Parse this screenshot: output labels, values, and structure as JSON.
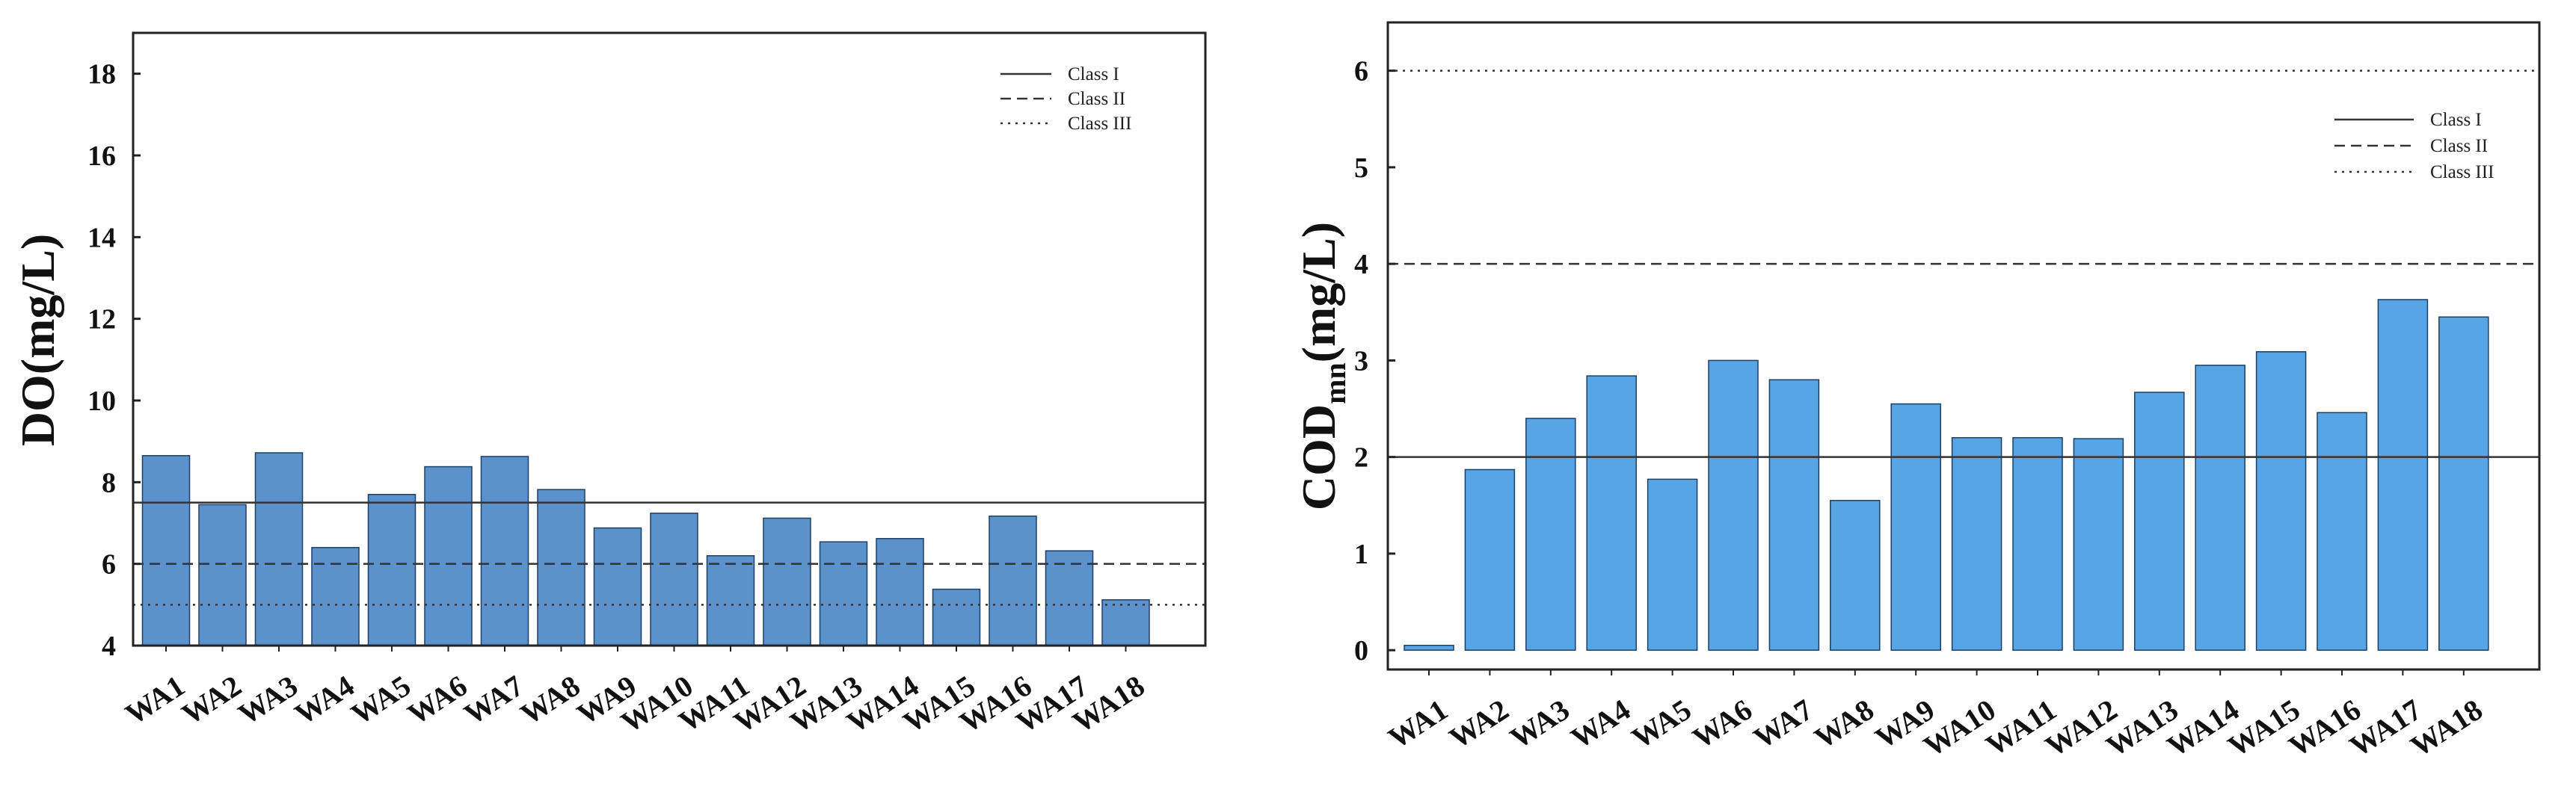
{
  "chart_data": [
    {
      "type": "bar",
      "title": "",
      "xlabel": "",
      "ylabel": "DO(mg/L)",
      "ylim": [
        4,
        19
      ],
      "yticks": [
        4,
        6,
        8,
        10,
        12,
        14,
        16,
        18
      ],
      "bar_color": "#5b92cc",
      "categories": [
        "WA1",
        "WA2",
        "WA3",
        "WA4",
        "WA5",
        "WA6",
        "WA7",
        "WA8",
        "WA9",
        "WA10",
        "WA11",
        "WA12",
        "WA13",
        "WA14",
        "WA15",
        "WA16",
        "WA17",
        "WA18"
      ],
      "values": [
        8.65,
        7.45,
        8.72,
        6.4,
        7.7,
        8.38,
        8.63,
        7.82,
        6.88,
        7.24,
        6.2,
        7.12,
        6.54,
        6.62,
        5.38,
        7.17,
        6.32,
        5.12
      ],
      "reference_lines": [
        {
          "name": "Class I",
          "value": 7.5,
          "style": "solid"
        },
        {
          "name": "Class II",
          "value": 6,
          "style": "dashed"
        },
        {
          "name": "Class III",
          "value": 5,
          "style": "dotted"
        }
      ],
      "legend": [
        "Class I",
        "Class II",
        "Class III"
      ],
      "legend_position": "top-right"
    },
    {
      "type": "bar",
      "title": "",
      "xlabel": "",
      "ylabel": "CODmn(mg/L)",
      "ylabel_main": "COD",
      "ylabel_sub": "mn",
      "ylabel_unit": "(mg/L)",
      "ylim": [
        -0.2,
        6.5
      ],
      "yticks": [
        0,
        1,
        2,
        3,
        4,
        5,
        6
      ],
      "bar_color": "#57a5e4",
      "categories": [
        "WA1",
        "WA2",
        "WA3",
        "WA4",
        "WA5",
        "WA6",
        "WA7",
        "WA8",
        "WA9",
        "WA10",
        "WA11",
        "WA12",
        "WA13",
        "WA14",
        "WA15",
        "WA16",
        "WA17",
        "WA18"
      ],
      "values": [
        0.05,
        1.87,
        2.4,
        2.84,
        1.77,
        3.0,
        2.8,
        1.55,
        2.55,
        2.2,
        2.2,
        2.19,
        2.67,
        2.95,
        3.09,
        2.46,
        3.63,
        3.45
      ],
      "reference_lines": [
        {
          "name": "Class I",
          "value": 2,
          "style": "solid"
        },
        {
          "name": "Class II",
          "value": 4,
          "style": "dashed"
        },
        {
          "name": "Class III",
          "value": 6,
          "style": "dotted"
        }
      ],
      "legend": [
        "Class I",
        "Class II",
        "Class III"
      ],
      "legend_position": "top-right"
    }
  ]
}
